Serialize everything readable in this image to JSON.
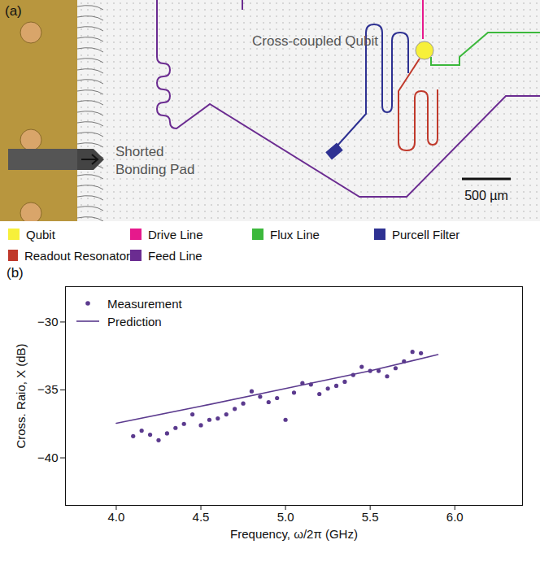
{
  "panel_a": {
    "letter": "(a)",
    "labels": {
      "pad": "Shorted Bonding Pad",
      "qubit": "Cross-coupled Qubit"
    },
    "scale_bar": "500 µm",
    "legend": [
      {
        "name": "Qubit",
        "color": "#f7f03a"
      },
      {
        "name": "Drive Line",
        "color": "#e6198c"
      },
      {
        "name": "Flux Line",
        "color": "#3cb83c"
      },
      {
        "name": "Purcell Filter",
        "color": "#2e3192"
      },
      {
        "name": "Readout Resonator",
        "color": "#c0392b"
      },
      {
        "name": "Feed Line",
        "color": "#6b2c91"
      }
    ]
  },
  "chart_data": {
    "type": "scatter",
    "letter": "(b)",
    "x_label": "Frequency, ω/2π (GHz)",
    "y_label": "Cross. Raio, X (dB)",
    "series": [
      {
        "name": "Measurement",
        "type": "scatter",
        "marker": "circle",
        "color": "#5b3a8e",
        "x": [
          4.1,
          4.15,
          4.2,
          4.25,
          4.3,
          4.35,
          4.4,
          4.45,
          4.5,
          4.55,
          4.6,
          4.65,
          4.7,
          4.75,
          4.8,
          4.85,
          4.9,
          4.95,
          5.0,
          5.05,
          5.1,
          5.15,
          5.2,
          5.25,
          5.3,
          5.35,
          5.4,
          5.45,
          5.5,
          5.55,
          5.6,
          5.65,
          5.7,
          5.75,
          5.8
        ],
        "values": [
          -38.4,
          -38.0,
          -38.3,
          -38.7,
          -38.2,
          -37.8,
          -37.5,
          -36.8,
          -37.6,
          -37.2,
          -37.1,
          -36.8,
          -36.4,
          -36.0,
          -35.1,
          -35.5,
          -35.9,
          -35.6,
          -37.2,
          -35.2,
          -34.5,
          -34.6,
          -35.3,
          -34.9,
          -34.7,
          -34.4,
          -33.9,
          -33.3,
          -33.6,
          -33.6,
          -34.0,
          -33.4,
          -32.9,
          -32.2,
          -32.3
        ]
      },
      {
        "name": "Prediction",
        "type": "line",
        "line_style": "solid",
        "color": "#5b3a8e",
        "x": [
          4.0,
          4.5,
          5.0,
          5.5,
          5.9
        ],
        "values": [
          -37.45,
          -36.2,
          -34.9,
          -33.6,
          -32.4
        ]
      }
    ],
    "xlim": [
      3.7,
      6.4
    ],
    "xticks": [
      {
        "value": 4,
        "label": "4.0"
      },
      {
        "value": 4.5,
        "label": "4.5"
      },
      {
        "value": 5,
        "label": "5.0"
      },
      {
        "value": 5.5,
        "label": "5.5"
      },
      {
        "value": 6,
        "label": "6.0"
      }
    ],
    "ylim": [
      -43.5,
      -27.4
    ],
    "yticks": [
      -40,
      -35,
      -30
    ],
    "legend": "upper left",
    "grid": false
  }
}
